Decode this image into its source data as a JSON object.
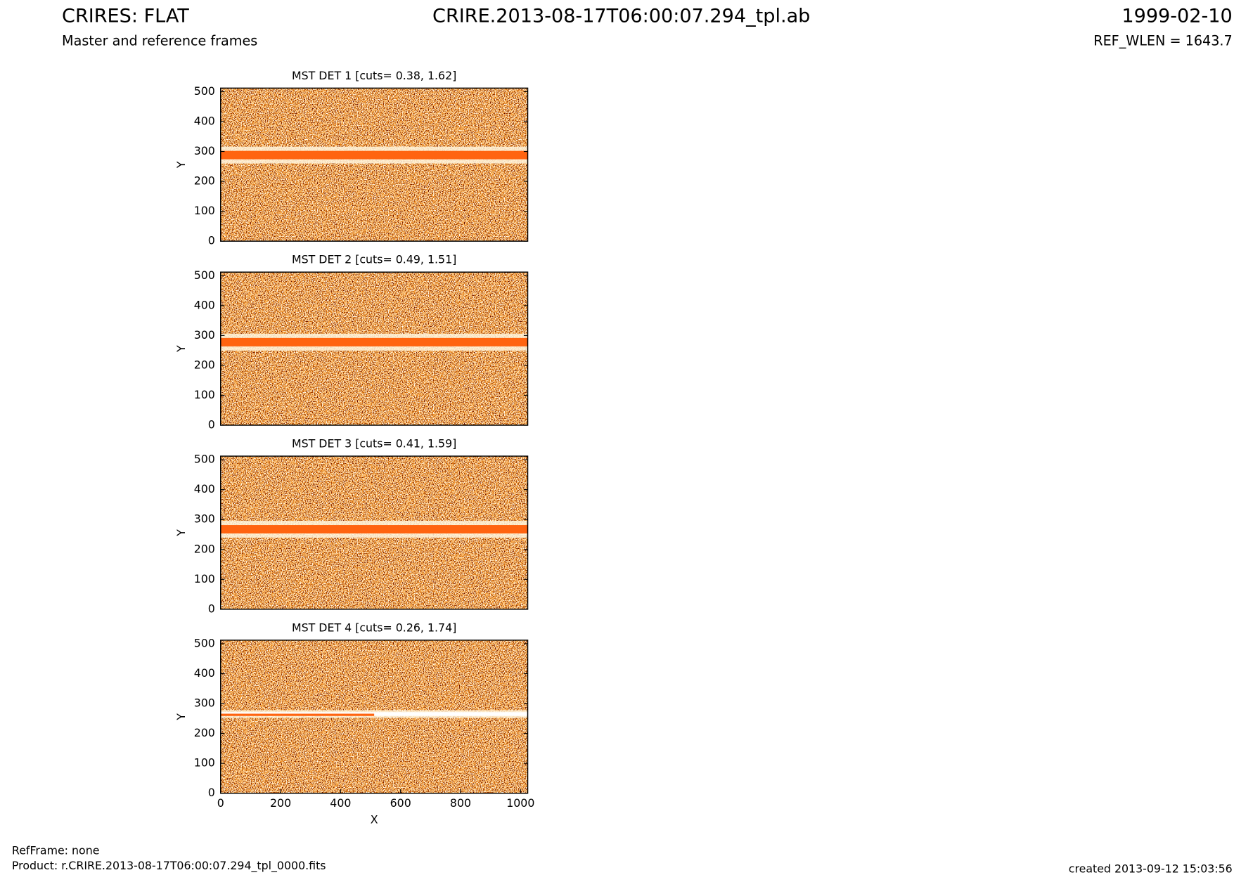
{
  "header": {
    "title": "CRIRES: FLAT",
    "file": "CRIRE.2013-08-17T06:00:07.294_tpl.ab",
    "date": "1999-02-10",
    "subtitle": "Master and reference frames",
    "ref_wlen": "REF_WLEN = 1643.7"
  },
  "footer": {
    "ref_frame": "RefFrame: none",
    "product": "Product: r.CRIRE.2013-08-17T06:00:07.294_tpl_0000.fits",
    "created": "created 2013-09-12 15:03:56"
  },
  "chart_data": [
    {
      "type": "image",
      "title": "MST DET 1 [cuts= 0.38, 1.62]",
      "y_label": "Y",
      "xlim": [
        0,
        1024
      ],
      "ylim": [
        0,
        512
      ],
      "yticks": [
        0,
        100,
        200,
        300,
        400,
        500
      ]
    },
    {
      "type": "image",
      "title": "MST DET 2 [cuts= 0.49, 1.51]",
      "y_label": "Y",
      "xlim": [
        0,
        1024
      ],
      "ylim": [
        0,
        512
      ],
      "yticks": [
        0,
        100,
        200,
        300,
        400,
        500
      ]
    },
    {
      "type": "image",
      "title": "MST DET 3 [cuts= 0.41, 1.59]",
      "y_label": "Y",
      "xlim": [
        0,
        1024
      ],
      "ylim": [
        0,
        512
      ],
      "yticks": [
        0,
        100,
        200,
        300,
        400,
        500
      ]
    },
    {
      "type": "image",
      "title": "MST DET 4 [cuts= 0.26, 1.74]",
      "y_label": "Y",
      "x_label": "X",
      "xlim": [
        0,
        1024
      ],
      "ylim": [
        0,
        512
      ],
      "yticks": [
        0,
        100,
        200,
        300,
        400,
        500
      ],
      "xticks": [
        0,
        200,
        400,
        600,
        800,
        1000
      ]
    }
  ]
}
